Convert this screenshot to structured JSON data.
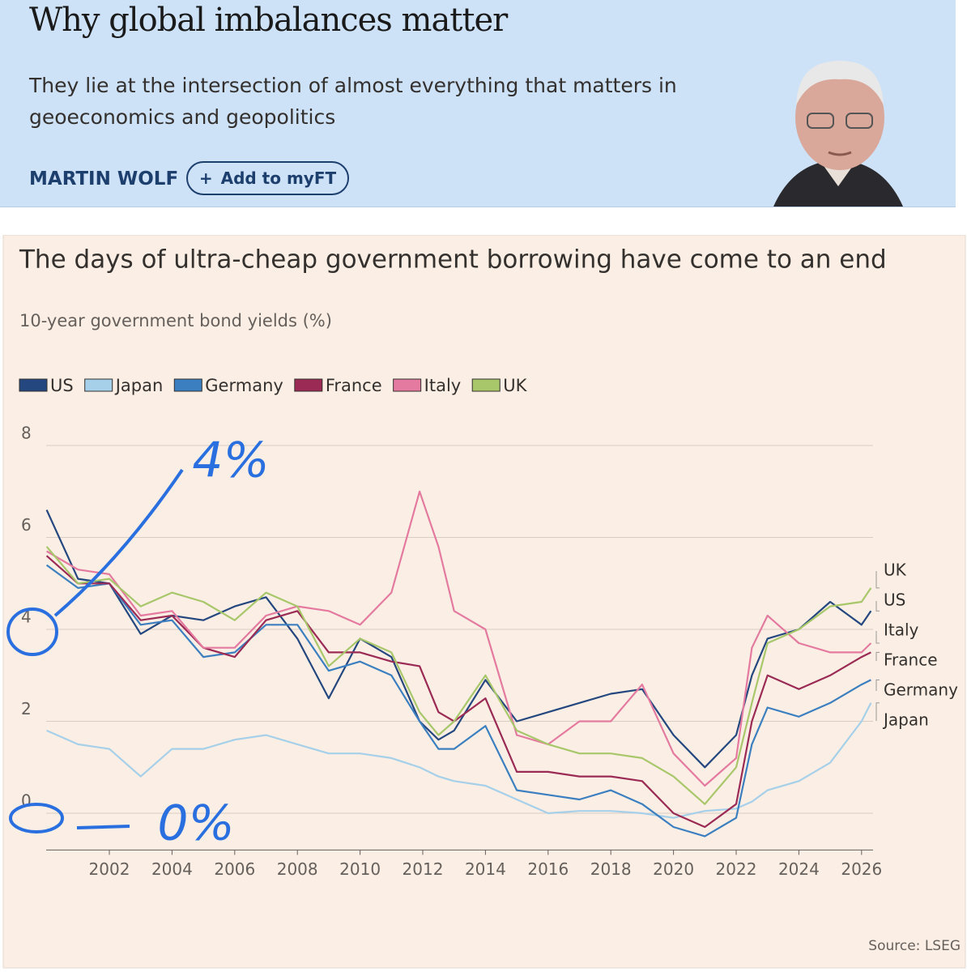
{
  "header": {
    "title": "Why global imbalances matter",
    "subtitle": "They lie at the intersection of almost everything that matters in geoeconomics and geopolitics",
    "author": "MARTIN WOLF",
    "button": "Add to myFT"
  },
  "chart_data": {
    "type": "line",
    "title": "The days of ultra-cheap government borrowing have come to an end",
    "subtitle": "10-year government bond yields (%)",
    "source": "Source: LSEG",
    "annotations": [
      "4%",
      "0%"
    ],
    "x": [
      2000,
      2001,
      2002,
      2003,
      2004,
      2005,
      2006,
      2007,
      2008,
      2009,
      2010,
      2011,
      2011.9,
      2012.5,
      2013,
      2014,
      2015,
      2016,
      2017,
      2018,
      2019,
      2020,
      2021,
      2022,
      2022.5,
      2023,
      2024,
      2025,
      2026,
      2026.3
    ],
    "series": [
      {
        "name": "US",
        "color": "#24477f",
        "values": [
          6.6,
          5.1,
          5.0,
          3.9,
          4.3,
          4.2,
          4.5,
          4.7,
          3.8,
          2.5,
          3.8,
          3.4,
          2.0,
          1.6,
          1.8,
          2.9,
          2.0,
          2.2,
          2.4,
          2.6,
          2.7,
          1.7,
          1.0,
          1.7,
          3.0,
          3.8,
          4.0,
          4.6,
          4.1,
          4.4
        ]
      },
      {
        "name": "Japan",
        "color": "#a6d0ea",
        "values": [
          1.8,
          1.5,
          1.4,
          0.8,
          1.4,
          1.4,
          1.6,
          1.7,
          1.5,
          1.3,
          1.3,
          1.2,
          1.0,
          0.8,
          0.7,
          0.6,
          0.3,
          0.0,
          0.05,
          0.05,
          0.0,
          -0.1,
          0.05,
          0.1,
          0.25,
          0.5,
          0.7,
          1.1,
          2.0,
          2.4
        ]
      },
      {
        "name": "Germany",
        "color": "#3c7fc0",
        "values": [
          5.4,
          4.9,
          5.0,
          4.1,
          4.2,
          3.4,
          3.5,
          4.1,
          4.1,
          3.1,
          3.3,
          3.0,
          2.0,
          1.4,
          1.4,
          1.9,
          0.5,
          0.4,
          0.3,
          0.5,
          0.2,
          -0.3,
          -0.5,
          -0.1,
          1.5,
          2.3,
          2.1,
          2.4,
          2.8,
          2.9
        ]
      },
      {
        "name": "France",
        "color": "#9b2a55",
        "values": [
          5.6,
          5.0,
          5.0,
          4.2,
          4.3,
          3.6,
          3.4,
          4.2,
          4.4,
          3.5,
          3.5,
          3.3,
          3.2,
          2.2,
          2.0,
          2.5,
          0.9,
          0.9,
          0.8,
          0.8,
          0.7,
          0.0,
          -0.3,
          0.2,
          2.0,
          3.0,
          2.7,
          3.0,
          3.4,
          3.5
        ]
      },
      {
        "name": "Italy",
        "color": "#e57aa0",
        "values": [
          5.7,
          5.3,
          5.2,
          4.3,
          4.4,
          3.6,
          3.6,
          4.3,
          4.5,
          4.4,
          4.1,
          4.8,
          7.0,
          5.8,
          4.4,
          4.0,
          1.7,
          1.5,
          2.0,
          2.0,
          2.8,
          1.3,
          0.6,
          1.2,
          3.6,
          4.3,
          3.7,
          3.5,
          3.5,
          3.7
        ]
      },
      {
        "name": "UK",
        "color": "#a8c76a",
        "values": [
          5.8,
          5.0,
          5.1,
          4.5,
          4.8,
          4.6,
          4.2,
          4.8,
          4.5,
          3.2,
          3.8,
          3.5,
          2.2,
          1.7,
          2.0,
          3.0,
          1.8,
          1.5,
          1.3,
          1.3,
          1.2,
          0.8,
          0.2,
          1.0,
          2.4,
          3.7,
          4.0,
          4.5,
          4.6,
          4.9
        ]
      }
    ],
    "xlim": [
      2000,
      2026.35
    ],
    "xticks": [
      2002,
      2004,
      2006,
      2008,
      2010,
      2012,
      2014,
      2016,
      2018,
      2020,
      2022,
      2024,
      2026
    ],
    "ylim": [
      -0.8,
      8
    ],
    "yticks": [
      0,
      2,
      4,
      6,
      8
    ],
    "grid": true
  }
}
